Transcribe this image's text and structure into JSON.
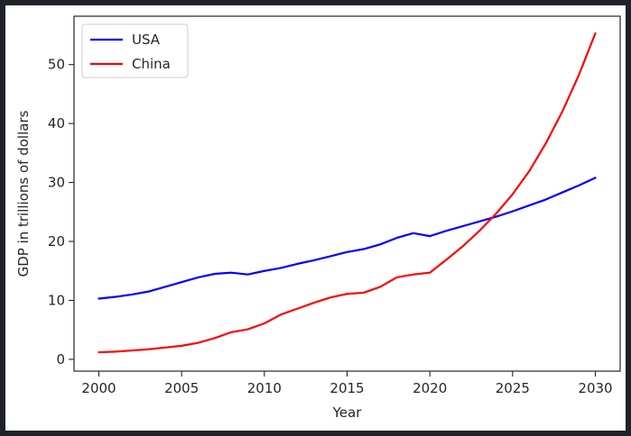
{
  "chart_data": {
    "type": "line",
    "xlabel": "Year",
    "ylabel": "GDP in trillions of dollars",
    "xlim": [
      1998.5,
      2031.5
    ],
    "ylim": [
      -2.0,
      58.2
    ],
    "xticks": [
      2000,
      2005,
      2010,
      2015,
      2020,
      2025,
      2030
    ],
    "yticks": [
      0,
      10,
      20,
      30,
      40,
      50
    ],
    "grid": false,
    "legend_position": "upper-left",
    "x": [
      2000,
      2001,
      2002,
      2003,
      2004,
      2005,
      2006,
      2007,
      2008,
      2009,
      2010,
      2011,
      2012,
      2013,
      2014,
      2015,
      2016,
      2017,
      2018,
      2019,
      2020,
      2021,
      2022,
      2023,
      2024,
      2025,
      2026,
      2027,
      2028,
      2029,
      2030
    ],
    "series": [
      {
        "name": "USA",
        "color": "#0000ff",
        "values": [
          10.3,
          10.6,
          11.0,
          11.5,
          12.3,
          13.1,
          13.9,
          14.5,
          14.7,
          14.4,
          15.0,
          15.5,
          16.2,
          16.8,
          17.5,
          18.2,
          18.7,
          19.5,
          20.6,
          21.4,
          20.9,
          21.8,
          22.6,
          23.4,
          24.2,
          25.1,
          26.1,
          27.1,
          28.3,
          29.5,
          30.8
        ]
      },
      {
        "name": "China",
        "color": "#ff0000",
        "values": [
          1.2,
          1.3,
          1.5,
          1.7,
          2.0,
          2.3,
          2.8,
          3.6,
          4.6,
          5.1,
          6.1,
          7.6,
          8.6,
          9.6,
          10.5,
          11.1,
          11.3,
          12.3,
          13.9,
          14.4,
          14.7,
          16.9,
          19.2,
          21.8,
          24.7,
          28.0,
          31.9,
          36.6,
          42.0,
          48.2,
          55.3
        ]
      }
    ]
  }
}
